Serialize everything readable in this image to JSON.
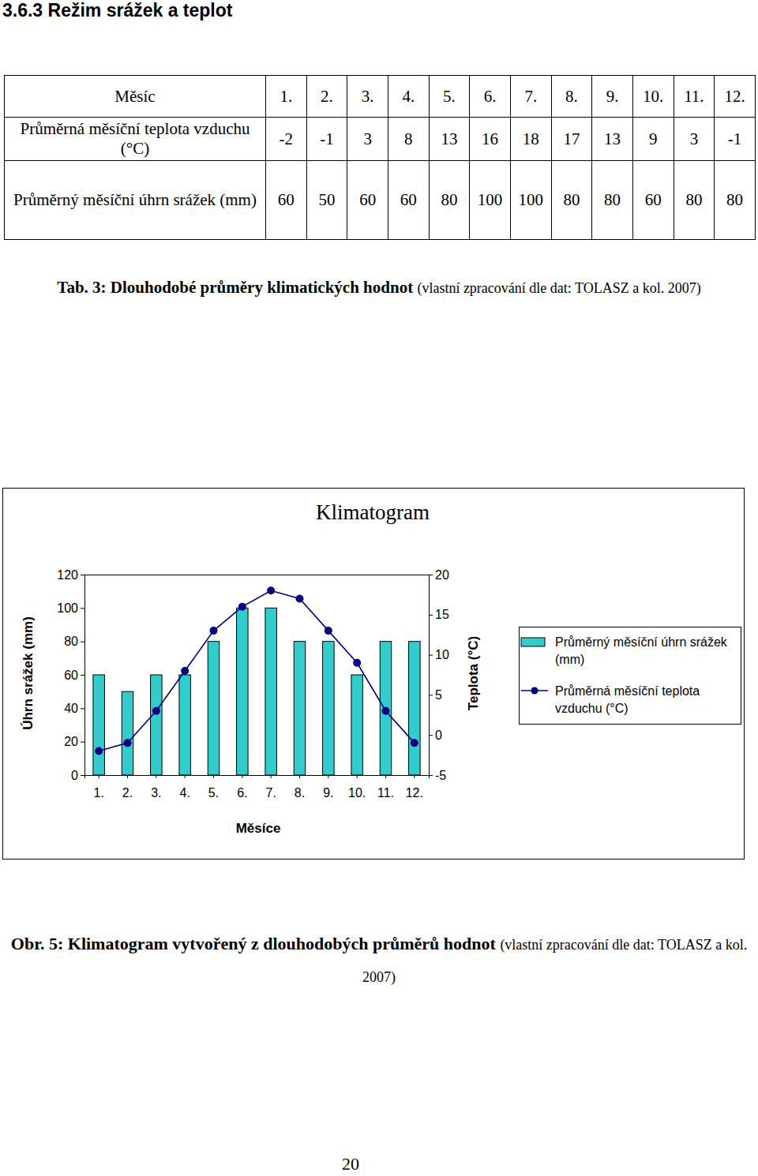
{
  "heading": "3.6.3 Režim srážek a teplot",
  "table": {
    "header": [
      "Měsíc",
      "1.",
      "2.",
      "3.",
      "4.",
      "5.",
      "6.",
      "7.",
      "8.",
      "9.",
      "10.",
      "11.",
      "12."
    ],
    "rows": [
      {
        "label": "Průměrná měsíční teplota vzduchu (°C)",
        "values": [
          -2,
          -1,
          3,
          8,
          13,
          16,
          18,
          17,
          13,
          9,
          3,
          -1
        ]
      },
      {
        "label": "Průměrný měsíční úhrn srážek (mm)",
        "values": [
          60,
          50,
          60,
          60,
          80,
          100,
          100,
          80,
          80,
          60,
          80,
          80
        ]
      }
    ]
  },
  "table_caption": {
    "label": "Tab. 3: Dlouhodobé průměry klimatických hodnot",
    "source": "(vlastní zpracování dle dat: TOLASZ a kol. 2007)"
  },
  "chart_data": {
    "type": "bar",
    "title": "Klimatogram",
    "x_label": "Měsíce",
    "y_label": "Úhrn srážek (mm)",
    "y2_label": "Teplota (°C)",
    "categories": [
      "1.",
      "2.",
      "3.",
      "4.",
      "5.",
      "6.",
      "7.",
      "8.",
      "9.",
      "10.",
      "11.",
      "12."
    ],
    "series": [
      {
        "name": "Průměrný měsíční úhrn srážek (mm)",
        "type": "bar",
        "color": "#33cccc",
        "values": [
          60,
          50,
          60,
          60,
          80,
          100,
          100,
          80,
          80,
          60,
          80,
          80
        ]
      },
      {
        "name": "Průměrná měsíční teplota vzduchu (°C)",
        "type": "line",
        "color": "#000080",
        "marker": "circle",
        "axis": "y2",
        "values": [
          -2,
          -1,
          3,
          8,
          13,
          16,
          18,
          17,
          13,
          9,
          3,
          -1
        ]
      }
    ],
    "ylim": [
      0,
      120
    ],
    "yticks": [
      0,
      20,
      40,
      60,
      80,
      100,
      120
    ],
    "y2lim": [
      -5,
      20
    ],
    "y2ticks": [
      -5,
      0,
      5,
      10,
      15,
      20
    ],
    "grid": false,
    "legend": "right"
  },
  "figure_caption": {
    "label": "Obr. 5: Klimatogram vytvořený z dlouhodobých průměrů hodnot",
    "source": "(vlastní zpracování dle dat: TOLASZ a kol. 2007)"
  },
  "page_number": "20"
}
